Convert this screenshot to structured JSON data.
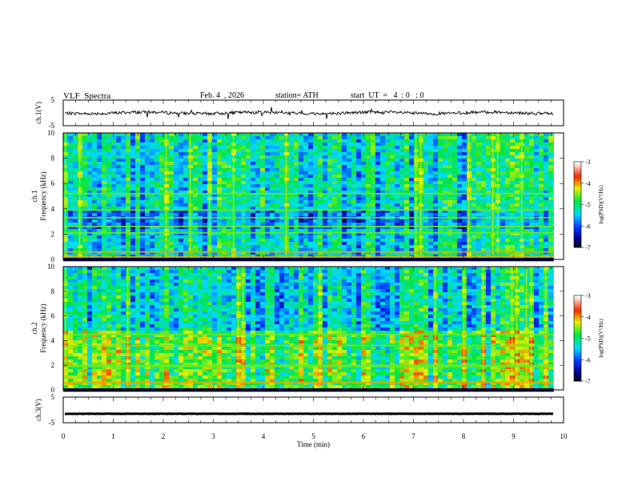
{
  "header": {
    "title": "VLF  Spectra",
    "date": "Feb. 4  , 2026",
    "station": "station= ATH",
    "start": "start  UT  =   4  : 0   : 0"
  },
  "chart_data": {
    "type": "heatmap",
    "title": "VLF  Spectra",
    "xlabel": "Time  (min)",
    "xlim": [
      0,
      10
    ],
    "xticks": [
      "0",
      "1",
      "2",
      "3",
      "4",
      "5",
      "6",
      "7",
      "8",
      "9",
      "10"
    ],
    "panels": [
      {
        "kind": "line",
        "ylabel": "ch.1(V)",
        "ylim": [
          -5,
          5
        ],
        "yticks": [
          "5",
          "-5"
        ],
        "baseline": 0,
        "description_value": "noisy waveform near 0 V"
      },
      {
        "kind": "spectrogram",
        "ylabel_top": "ch.1",
        "ylabel": "Frequency  (kHz)",
        "ylim": [
          0,
          10
        ],
        "yticks": [
          "10",
          "8",
          "6",
          "4",
          "2",
          "0"
        ],
        "bands_khz": [
          0.2,
          0.6,
          2.1,
          2.6,
          3.3,
          3.9,
          5.2
        ],
        "colorbar": {
          "label": "log(PSD)(V²/Hz)",
          "range": [
            -7,
            -3
          ],
          "ticks": [
            "-3",
            "-4",
            "-5",
            "-6",
            "-7"
          ]
        }
      },
      {
        "kind": "spectrogram",
        "ylabel_top": "ch.2",
        "ylabel": "Frequency  (kHz)",
        "ylim": [
          0,
          10
        ],
        "yticks": [
          "10",
          "8",
          "6",
          "4",
          "2",
          "0"
        ],
        "bands_khz": [
          0.6,
          1.9,
          2.0,
          3.6,
          4.5
        ],
        "colorbar": {
          "label": "log(PSD)(V²/Hz)",
          "range": [
            -7,
            -3
          ],
          "ticks": [
            "-3",
            "-4",
            "-5",
            "-6",
            "-7"
          ]
        }
      },
      {
        "kind": "line",
        "ylabel": "ch.3(V)",
        "ylim": [
          -5,
          5
        ],
        "yticks": [
          "5",
          "-5"
        ],
        "baseline": -1.5,
        "description_value": "flat line near -1.5 V"
      }
    ]
  }
}
